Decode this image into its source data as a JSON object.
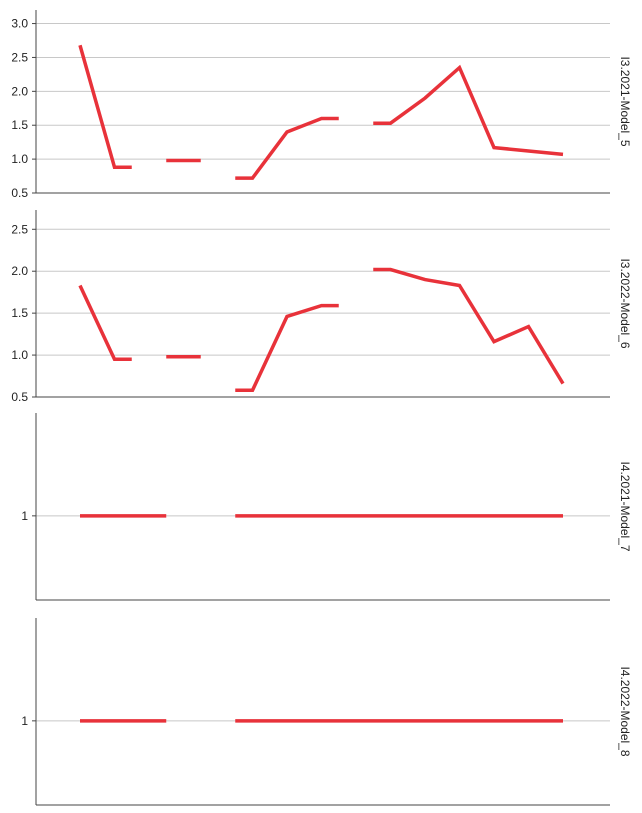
{
  "chart_data": [
    {
      "type": "line",
      "label": "I3.2021-Model_5",
      "color": "#e8323a",
      "categories": [
        null,
        null,
        null,
        null,
        null,
        null,
        null,
        null,
        null,
        null,
        null,
        null,
        null,
        null,
        null
      ],
      "values": [
        2.68,
        0.88,
        null,
        0.98,
        null,
        0.72,
        1.4,
        1.6,
        null,
        1.53,
        1.9,
        2.35,
        1.17,
        1.12,
        1.07
      ],
      "ylim": [
        0.5,
        3.2
      ],
      "yticks": [
        {
          "value": 0.5,
          "label": "0.5"
        },
        {
          "value": 1,
          "label": "1.0"
        },
        {
          "value": 1.5,
          "label": "1.5"
        },
        {
          "value": 2,
          "label": "2.0"
        },
        {
          "value": 2.5,
          "label": "2.5"
        },
        {
          "value": 3,
          "label": "3.0"
        }
      ],
      "grid": true
    },
    {
      "type": "line",
      "label": "I3.2022-Model_6",
      "color": "#e8323a",
      "categories": [
        null,
        null,
        null,
        null,
        null,
        null,
        null,
        null,
        null,
        null,
        null,
        null,
        null,
        null,
        null
      ],
      "values": [
        1.83,
        0.95,
        null,
        0.98,
        null,
        0.58,
        1.46,
        1.59,
        null,
        2.02,
        1.9,
        1.83,
        1.16,
        1.34,
        0.66
      ],
      "ylim": [
        0.5,
        2.73
      ],
      "yticks": [
        {
          "value": 0.5,
          "label": "0.5"
        },
        {
          "value": 1,
          "label": "1.0"
        },
        {
          "value": 1.5,
          "label": "1.5"
        },
        {
          "value": 2,
          "label": "2.0"
        },
        {
          "value": 2.5,
          "label": "2.5"
        }
      ],
      "grid": true
    },
    {
      "type": "line",
      "label": "I4.2021-Model_7",
      "color": "#e8323a",
      "categories": [
        null,
        null,
        null,
        null,
        null,
        null,
        null,
        null,
        null,
        null,
        null,
        null,
        null,
        null,
        null
      ],
      "values": [
        1,
        1,
        1,
        null,
        null,
        1,
        1,
        1,
        1,
        1,
        1,
        1,
        1,
        1,
        1
      ],
      "ylim": [
        0.55,
        1.55
      ],
      "yticks": [
        1
      ],
      "grid": true
    },
    {
      "type": "line",
      "label": "I4.2022-Model_8",
      "color": "#e8323a",
      "categories": [
        null,
        null,
        null,
        null,
        null,
        null,
        null,
        null,
        null,
        null,
        null,
        null,
        null,
        null,
        null
      ],
      "values": [
        1,
        1,
        1,
        null,
        null,
        1,
        1,
        1,
        1,
        1,
        1,
        1,
        1,
        1,
        1
      ],
      "ylim": [
        0.55,
        1.55
      ],
      "yticks": [
        1
      ],
      "grid": true
    }
  ]
}
